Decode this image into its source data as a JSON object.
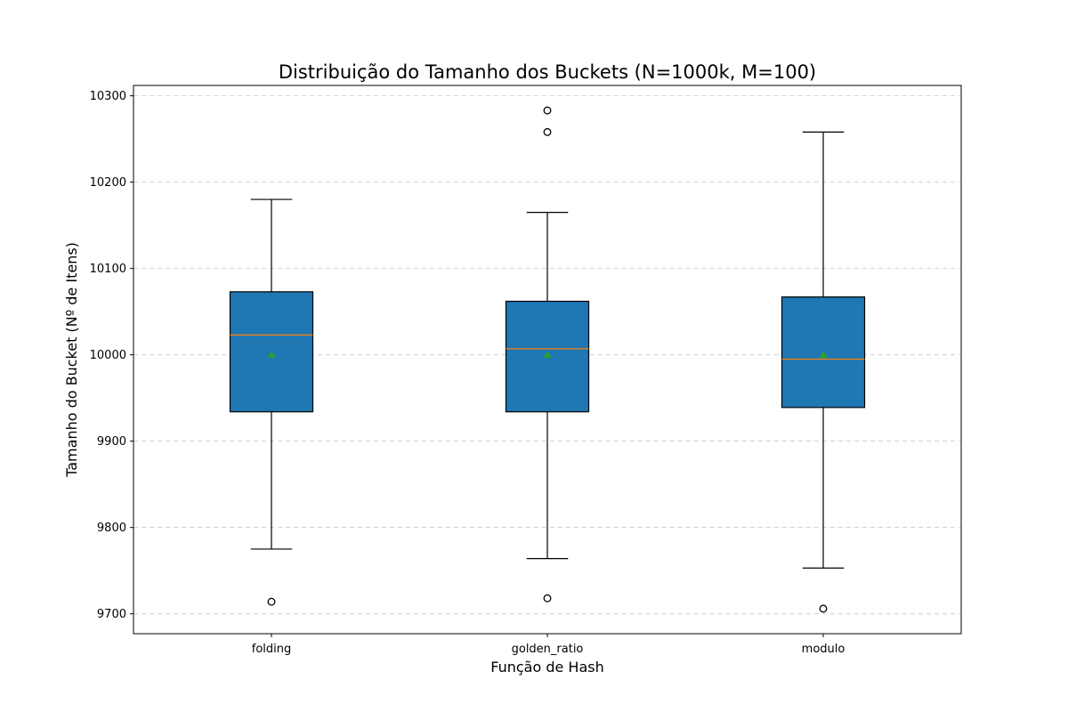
{
  "chart_data": {
    "type": "box",
    "title": "Distribuição do Tamanho dos Buckets (N=1000k, M=100)",
    "xlabel": "Função de Hash",
    "ylabel": "Tamanho do Bucket (Nº de Itens)",
    "categories": [
      "folding",
      "golden_ratio",
      "modulo"
    ],
    "ylim": [
      9677,
      10312
    ],
    "yticks": [
      9700,
      9800,
      9900,
      10000,
      10100,
      10200,
      10300
    ],
    "grid": "y-dashed",
    "box_color": "#1f77b4",
    "median_color": "#ff7f0e",
    "mean_color": "#2ca02c",
    "boxes": [
      {
        "category": "folding",
        "whisker_low": 9775,
        "q1": 9934,
        "median": 10023,
        "q3": 10073,
        "whisker_high": 10180,
        "mean": 10000,
        "outliers": [
          9714
        ]
      },
      {
        "category": "golden_ratio",
        "whisker_low": 9764,
        "q1": 9934,
        "median": 10007,
        "q3": 10062,
        "whisker_high": 10165,
        "mean": 10000,
        "outliers": [
          9718,
          10258,
          10283
        ]
      },
      {
        "category": "modulo",
        "whisker_low": 9753,
        "q1": 9939,
        "median": 9995,
        "q3": 10067,
        "whisker_high": 10258,
        "mean": 10000,
        "outliers": [
          9706
        ]
      }
    ]
  }
}
